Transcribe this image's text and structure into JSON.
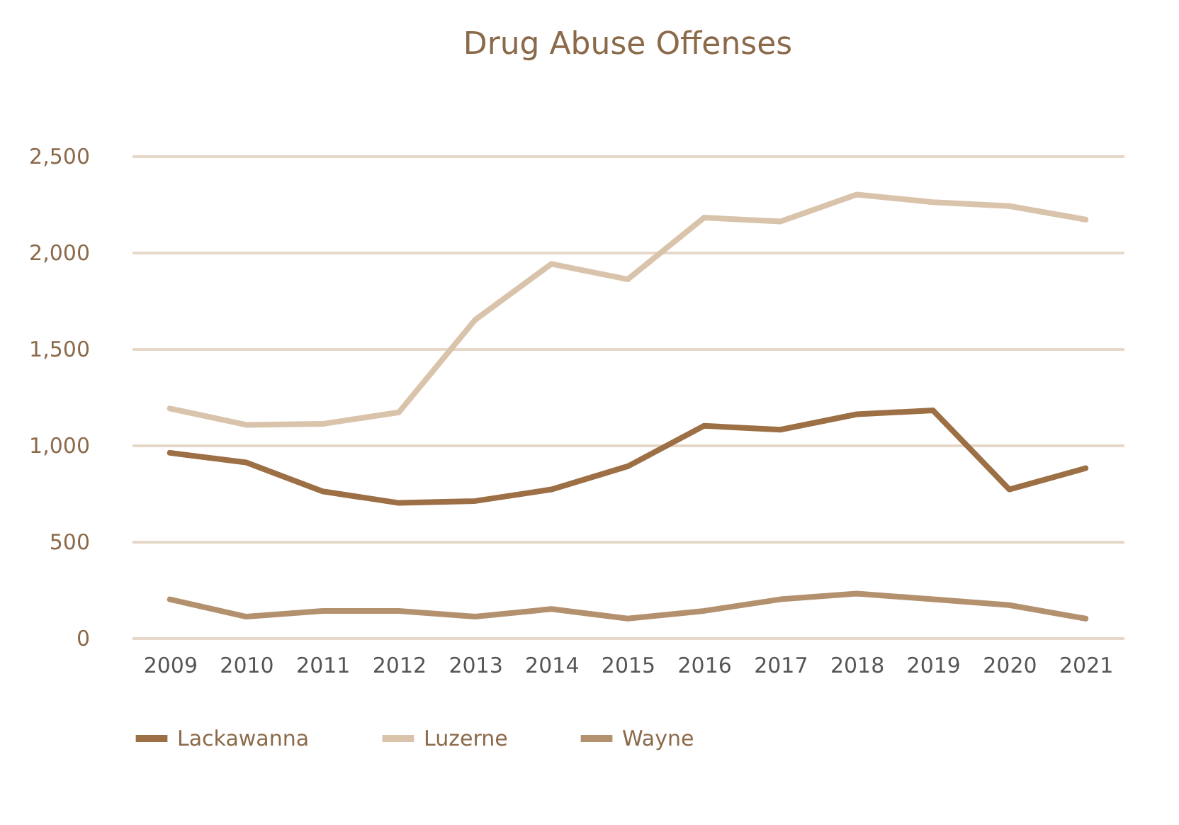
{
  "chart_data": {
    "type": "line",
    "title": "Drug Abuse Offenses",
    "categories": [
      "2009",
      "2010",
      "2011",
      "2012",
      "2013",
      "2014",
      "2015",
      "2016",
      "2017",
      "2018",
      "2019",
      "2020",
      "2021"
    ],
    "series": [
      {
        "name": "Lackawanna",
        "color": "#9c6f44",
        "values": [
          960,
          910,
          760,
          700,
          710,
          770,
          890,
          1100,
          1080,
          1160,
          1180,
          770,
          880
        ]
      },
      {
        "name": "Luzerne",
        "color": "#d9c3ab",
        "values": [
          1190,
          1105,
          1110,
          1170,
          1650,
          1940,
          1860,
          2180,
          2160,
          2300,
          2260,
          2240,
          2170
        ]
      },
      {
        "name": "Wayne",
        "color": "#b4916e",
        "values": [
          200,
          110,
          140,
          140,
          110,
          150,
          100,
          140,
          200,
          230,
          200,
          170,
          100
        ]
      }
    ],
    "ylim": [
      0,
      2500
    ],
    "yticks": [
      0,
      500,
      {
        "value": 1000,
        "label": "1,000"
      },
      {
        "value": 1500,
        "label": "1,500"
      },
      {
        "value": 2000,
        "label": "2,000"
      },
      {
        "value": 2500,
        "label": "2,500"
      }
    ],
    "grid": "y",
    "legend": "bottom",
    "line_style": "solid",
    "marker": "none"
  }
}
